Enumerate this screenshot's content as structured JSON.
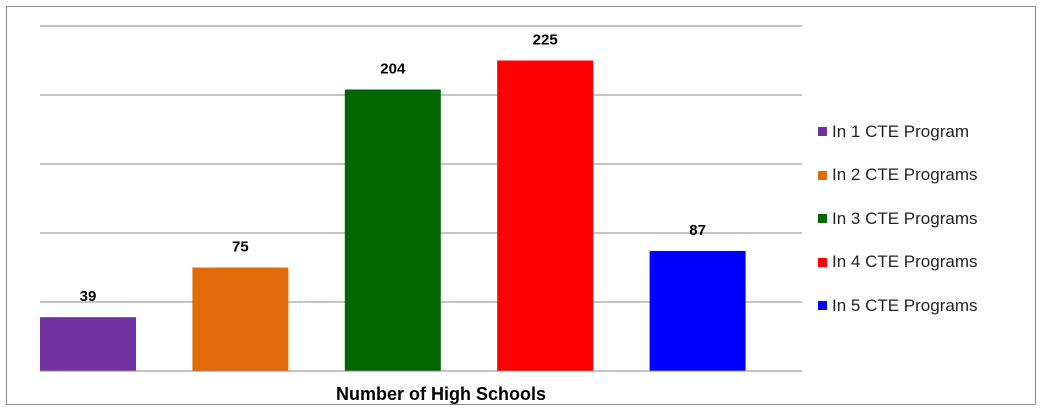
{
  "chart_data": {
    "type": "bar",
    "categories": [
      "In 1 CTE Program",
      "In 2 CTE Programs",
      "In 3 CTE Programs",
      "In 4 CTE Programs",
      "In 5 CTE Programs"
    ],
    "values": [
      39,
      75,
      204,
      225,
      87
    ],
    "colors": [
      "#7030a0",
      "#e36c0a",
      "#006600",
      "#ff0000",
      "#0000ff"
    ],
    "gridline_color": "#888888",
    "xlabel": "Number of High Schools",
    "ylabel": "",
    "ylim": [
      0,
      250
    ],
    "gridlines": [
      50,
      100,
      150,
      200,
      250
    ],
    "grid": true,
    "legend_position": "right"
  }
}
